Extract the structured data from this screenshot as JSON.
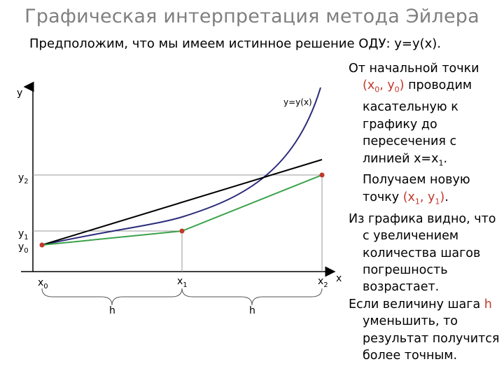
{
  "title": "Графическая интерпретация метода Эйлера",
  "subtitle": "Предположим, что мы имеем истинное решение ОДУ: y=y(x).",
  "diagram": {
    "y_axis_label": "y",
    "x_axis_label": "x",
    "curve_label": "y=y(x)",
    "y_labels": {
      "y2_base": "y",
      "y2_sub": "2",
      "y1_base": "y",
      "y1_sub": "1",
      "y0_base": "y",
      "y0_sub": "0"
    },
    "x_labels": {
      "x0_base": "x",
      "x0_sub": "0",
      "x1_base": "x",
      "x1_sub": "1",
      "x2_base": "x",
      "x2_sub": "2"
    },
    "h_label_1": "h",
    "h_label_2": "h",
    "colors": {
      "curve": "#2b2b7a",
      "tangent": "#000000",
      "euler": "#3aa24a",
      "points": "#c0392b",
      "guides": "#999999"
    }
  },
  "explanation": {
    "p1": {
      "a": "От начальной точки",
      "b": "(x",
      "b_sub": "0",
      "c": ", y",
      "c_sub": "0",
      "d": ")",
      "e": " проводим касательную к графику до пересечения с линией x=x",
      "e_sub": "1",
      "f": ". Получаем новую точку ",
      "g": "(x",
      "g_sub": "1",
      "h": ", y",
      "h_sub": "1",
      "i": ")",
      "j": "."
    },
    "p2": "Из графика видно, что с увеличением количества шагов погрешность возрастает.",
    "p3": {
      "a": "Если величину шага ",
      "b": "h",
      "c": " уменьшить, то результат получится более точным."
    }
  }
}
